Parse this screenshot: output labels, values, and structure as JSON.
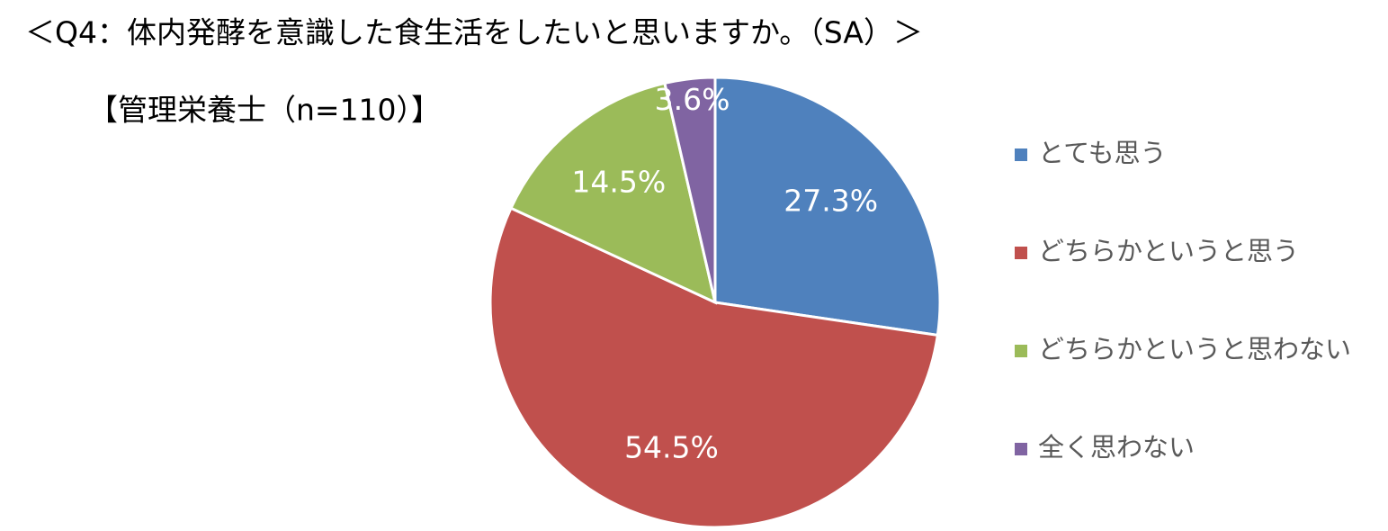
{
  "chart_data": {
    "type": "pie",
    "title": "＜Q4：体内発酵を意識した食生活をしたいと思いますか。（SA）＞",
    "subtitle": "【管理栄養士（n=110）】",
    "categories": [
      "とても思う",
      "どちらかというと思う",
      "どちらかというと思わない",
      "全く思わない"
    ],
    "values": [
      27.3,
      54.5,
      14.5,
      3.6
    ],
    "value_labels": [
      "27.3%",
      "54.5%",
      "14.5%",
      "3.6%"
    ],
    "colors": [
      "#4f81bd",
      "#c0504d",
      "#9bbb59",
      "#8064a2"
    ],
    "legend": "right"
  }
}
